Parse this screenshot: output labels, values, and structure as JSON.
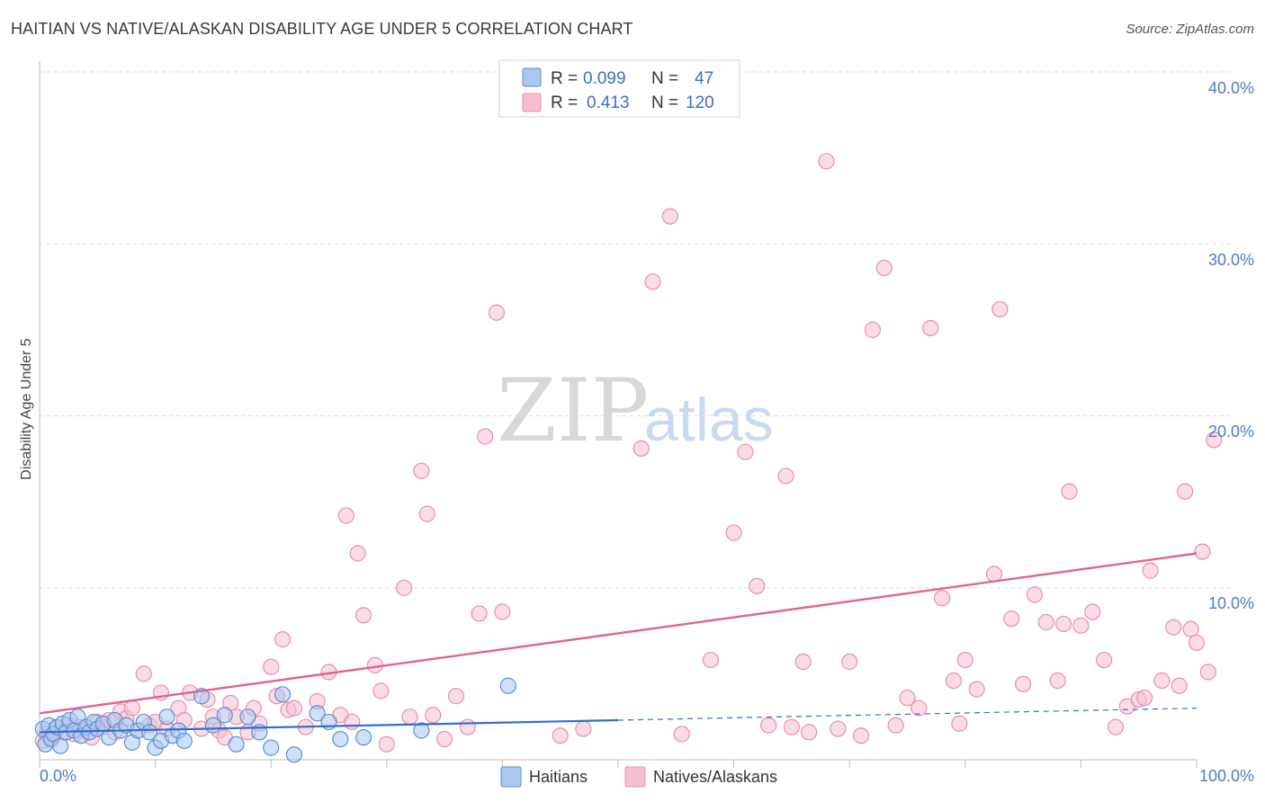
{
  "title": "HAITIAN VS NATIVE/ALASKAN DISABILITY AGE UNDER 5 CORRELATION CHART",
  "source": "Source: ZipAtlas.com",
  "watermark": {
    "zip": "ZIP",
    "atlas": "atlas"
  },
  "colors": {
    "haitians_fill": "#a9c7ef",
    "haitians_stroke": "#5d8fd8",
    "haitians_line": "#2f6fcf",
    "natives_fill": "#f6bfd0",
    "natives_stroke": "#e98fad",
    "natives_line": "#e0648f",
    "grid": "#dcdcdc",
    "tick_text": "#4a7bd0"
  },
  "legend": {
    "rows": [
      {
        "r_label": "R =",
        "r_value": "0.099",
        "n_label": "N =",
        "n_value": "47"
      },
      {
        "r_label": "R =",
        "r_value": "0.413",
        "n_label": "N =",
        "n_value": "120"
      }
    ]
  },
  "bottom_legend": [
    "Haitians",
    "Natives/Alaskans"
  ],
  "chart_data": {
    "type": "scatter",
    "title": "HAITIAN VS NATIVE/ALASKAN DISABILITY AGE UNDER 5 CORRELATION CHART",
    "xlabel": "",
    "ylabel": "Disability Age Under 5",
    "xlim": [
      0,
      100
    ],
    "ylim": [
      0,
      40
    ],
    "x_tick_labels": [
      "0.0%",
      "100.0%"
    ],
    "y_ticks": [
      10,
      20,
      30,
      40
    ],
    "y_tick_labels": [
      "10.0%",
      "20.0%",
      "30.0%",
      "40.0%"
    ],
    "grid": true,
    "series": [
      {
        "name": "Haitians",
        "r": 0.099,
        "n": 47,
        "trend": {
          "x0": 0,
          "y0": 1.6,
          "x1": 50,
          "y1": 2.3,
          "dashed_to_x": 100,
          "dashed_to_y": 3.0
        },
        "points": [
          [
            0.3,
            1.8
          ],
          [
            0.5,
            0.9
          ],
          [
            0.8,
            2.0
          ],
          [
            1.0,
            1.2
          ],
          [
            1.2,
            1.5
          ],
          [
            1.5,
            1.9
          ],
          [
            1.8,
            0.8
          ],
          [
            2.0,
            2.1
          ],
          [
            2.3,
            1.6
          ],
          [
            2.6,
            2.3
          ],
          [
            3.0,
            1.7
          ],
          [
            3.3,
            2.5
          ],
          [
            3.6,
            1.4
          ],
          [
            4.0,
            1.9
          ],
          [
            4.3,
            1.6
          ],
          [
            4.7,
            2.2
          ],
          [
            5.0,
            1.8
          ],
          [
            5.5,
            2.1
          ],
          [
            6.0,
            1.3
          ],
          [
            6.5,
            2.3
          ],
          [
            7.0,
            1.7
          ],
          [
            7.5,
            2.0
          ],
          [
            8.0,
            1.0
          ],
          [
            8.5,
            1.7
          ],
          [
            9.0,
            2.2
          ],
          [
            9.5,
            1.6
          ],
          [
            10.0,
            0.7
          ],
          [
            10.5,
            1.1
          ],
          [
            11.0,
            2.5
          ],
          [
            11.5,
            1.4
          ],
          [
            12.0,
            1.7
          ],
          [
            12.5,
            1.1
          ],
          [
            14.0,
            3.7
          ],
          [
            15.0,
            2.0
          ],
          [
            16.0,
            2.6
          ],
          [
            17.0,
            0.9
          ],
          [
            18.0,
            2.5
          ],
          [
            19.0,
            1.6
          ],
          [
            20.0,
            0.7
          ],
          [
            21.0,
            3.8
          ],
          [
            22.0,
            0.3
          ],
          [
            24.0,
            2.7
          ],
          [
            25.0,
            2.2
          ],
          [
            26.0,
            1.2
          ],
          [
            28.0,
            1.3
          ],
          [
            33.0,
            1.7
          ],
          [
            40.5,
            4.3
          ]
        ]
      },
      {
        "name": "Natives/Alaskans",
        "r": 0.413,
        "n": 120,
        "trend": {
          "x0": 0,
          "y0": 2.7,
          "x1": 100,
          "y1": 12.0
        },
        "points": [
          [
            0.3,
            1.1
          ],
          [
            0.6,
            1.5
          ],
          [
            1.0,
            1.3
          ],
          [
            1.5,
            1.8
          ],
          [
            2.0,
            1.6
          ],
          [
            2.5,
            2.0
          ],
          [
            3.0,
            1.5
          ],
          [
            3.5,
            1.9
          ],
          [
            4.0,
            1.7
          ],
          [
            4.5,
            1.3
          ],
          [
            5.0,
            2.2
          ],
          [
            5.5,
            1.9
          ],
          [
            6.0,
            2.3
          ],
          [
            6.5,
            1.6
          ],
          [
            7.0,
            2.8
          ],
          [
            7.5,
            2.4
          ],
          [
            8.0,
            3.0
          ],
          [
            8.5,
            1.7
          ],
          [
            9.0,
            5.0
          ],
          [
            9.5,
            2.0
          ],
          [
            10.0,
            2.2
          ],
          [
            10.5,
            3.9
          ],
          [
            11.0,
            1.8
          ],
          [
            12.0,
            3.0
          ],
          [
            12.5,
            2.3
          ],
          [
            13.0,
            3.9
          ],
          [
            14.0,
            1.8
          ],
          [
            14.5,
            3.5
          ],
          [
            15.0,
            2.5
          ],
          [
            15.5,
            1.7
          ],
          [
            16.0,
            1.3
          ],
          [
            16.5,
            3.3
          ],
          [
            17.0,
            2.5
          ],
          [
            18.0,
            1.6
          ],
          [
            18.5,
            3.0
          ],
          [
            19.0,
            2.1
          ],
          [
            20.0,
            5.4
          ],
          [
            20.5,
            3.7
          ],
          [
            21.0,
            7.0
          ],
          [
            21.5,
            2.9
          ],
          [
            22.0,
            3.0
          ],
          [
            23.0,
            1.9
          ],
          [
            24.0,
            3.4
          ],
          [
            25.0,
            5.1
          ],
          [
            26.0,
            2.6
          ],
          [
            26.5,
            14.2
          ],
          [
            27.0,
            2.2
          ],
          [
            27.5,
            12.0
          ],
          [
            28.0,
            8.4
          ],
          [
            29.0,
            5.5
          ],
          [
            29.5,
            4.0
          ],
          [
            30.0,
            0.9
          ],
          [
            31.5,
            10.0
          ],
          [
            32.0,
            2.5
          ],
          [
            33.0,
            16.8
          ],
          [
            33.5,
            14.3
          ],
          [
            34.0,
            2.6
          ],
          [
            35.0,
            1.2
          ],
          [
            36.0,
            3.7
          ],
          [
            37.0,
            1.9
          ],
          [
            38.0,
            8.5
          ],
          [
            38.5,
            18.8
          ],
          [
            39.5,
            26.0
          ],
          [
            40.0,
            8.6
          ],
          [
            45.0,
            1.4
          ],
          [
            47.0,
            1.8
          ],
          [
            52.0,
            18.1
          ],
          [
            53.0,
            27.8
          ],
          [
            54.5,
            31.6
          ],
          [
            58.0,
            5.8
          ],
          [
            60.0,
            13.2
          ],
          [
            61.0,
            17.9
          ],
          [
            62.0,
            10.1
          ],
          [
            64.5,
            16.5
          ],
          [
            65.0,
            1.9
          ],
          [
            66.0,
            5.7
          ],
          [
            68.0,
            34.8
          ],
          [
            70.0,
            5.7
          ],
          [
            72.0,
            25.0
          ],
          [
            73.0,
            28.6
          ],
          [
            74.0,
            2.0
          ],
          [
            75.0,
            3.6
          ],
          [
            76.0,
            3.0
          ],
          [
            77.0,
            25.1
          ],
          [
            78.0,
            9.4
          ],
          [
            79.0,
            4.6
          ],
          [
            80.0,
            5.8
          ],
          [
            81.0,
            4.1
          ],
          [
            82.5,
            10.8
          ],
          [
            83.0,
            26.2
          ],
          [
            84.0,
            8.2
          ],
          [
            85.0,
            4.4
          ],
          [
            86.0,
            9.6
          ],
          [
            87.0,
            8.0
          ],
          [
            88.0,
            4.6
          ],
          [
            88.5,
            7.9
          ],
          [
            89.0,
            15.6
          ],
          [
            90.0,
            7.8
          ],
          [
            91.0,
            8.6
          ],
          [
            92.0,
            5.8
          ],
          [
            93.0,
            1.9
          ],
          [
            94.0,
            3.1
          ],
          [
            95.0,
            3.5
          ],
          [
            95.5,
            3.6
          ],
          [
            96.0,
            11.0
          ],
          [
            97.0,
            4.6
          ],
          [
            98.0,
            7.7
          ],
          [
            98.5,
            4.3
          ],
          [
            99.0,
            15.6
          ],
          [
            99.5,
            7.6
          ],
          [
            100.0,
            6.8
          ],
          [
            100.5,
            12.1
          ],
          [
            101.0,
            5.1
          ],
          [
            101.5,
            18.6
          ],
          [
            55.5,
            1.5
          ],
          [
            63.0,
            2.0
          ],
          [
            66.5,
            1.6
          ],
          [
            69.0,
            1.8
          ],
          [
            71.0,
            1.4
          ],
          [
            79.5,
            2.1
          ]
        ]
      }
    ]
  }
}
